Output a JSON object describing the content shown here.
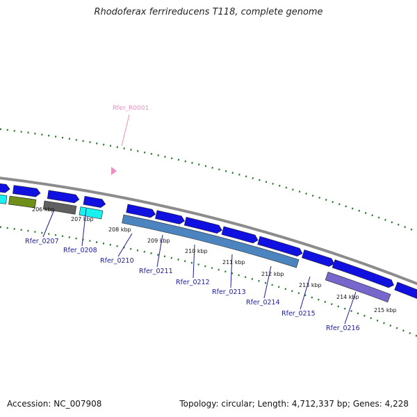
{
  "title": "Rhodoferax ferrireducens T118, complete genome",
  "accession": "Accession: NC_007908",
  "summary": "Topology: circular; Length: 4,712,337 bp; Genes: 4,228",
  "rna_feature": {
    "label": "Rfer_R0001",
    "color": "#f08cc0"
  },
  "scale_ticks": [
    "206 kbp",
    "207 kbp",
    "208 kbp",
    "209 kbp",
    "210 kbp",
    "211 kbp",
    "212 kbp",
    "213 kbp",
    "214 kbp",
    "215 kbp"
  ],
  "gene_labels": [
    "Rfer_0207",
    "Rfer_0208",
    "Rfer_0210",
    "Rfer_0211",
    "Rfer_0212",
    "Rfer_0213",
    "Rfer_0214",
    "Rfer_0215",
    "Rfer_0216"
  ],
  "colors": {
    "backbone": "#8c8c8c",
    "forward_cds": "#1010e0",
    "steelblue": "#4b84bf",
    "cyan": "#19f0f0",
    "olive": "#6f8e1a",
    "gray": "#606060",
    "purple": "#7766cc",
    "ticks": "#2a7a2a",
    "label": "#1a1a99"
  }
}
